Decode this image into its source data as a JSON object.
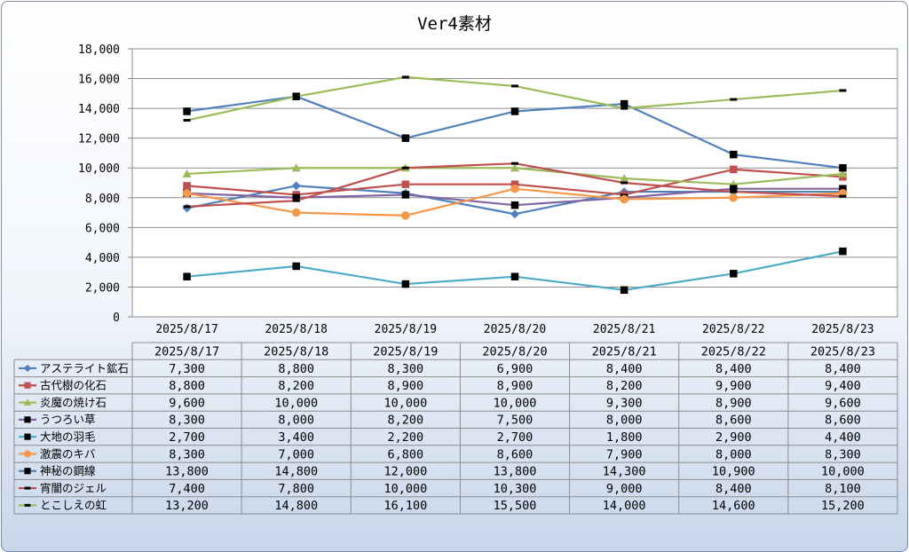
{
  "chart_data": {
    "type": "line",
    "title": "Ver4素材",
    "xlabel": "",
    "ylabel": "",
    "ylim": [
      0,
      18000
    ],
    "ytick_step": 2000,
    "ytick_labels": [
      "0",
      "2,000",
      "4,000",
      "6,000",
      "8,000",
      "10,000",
      "12,000",
      "14,000",
      "16,000",
      "18,000"
    ],
    "grid": true,
    "legend": "data-table-below",
    "categories": [
      "2025/8/17",
      "2025/8/18",
      "2025/8/19",
      "2025/8/20",
      "2025/8/21",
      "2025/8/22",
      "2025/8/23"
    ],
    "series": [
      {
        "name": "アステライト鉱石",
        "color": "#4f81bd",
        "marker": "diamond",
        "values": [
          7300,
          8800,
          8300,
          6900,
          8400,
          8400,
          8400
        ],
        "labels": [
          "7,300",
          "8,800",
          "8,300",
          "6,900",
          "8,400",
          "8,400",
          "8,400"
        ]
      },
      {
        "name": "古代樹の化石",
        "color": "#c0504d",
        "marker": "square",
        "values": [
          8800,
          8200,
          8900,
          8900,
          8200,
          9900,
          9400
        ],
        "labels": [
          "8,800",
          "8,200",
          "8,900",
          "8,900",
          "8,200",
          "9,900",
          "9,400"
        ]
      },
      {
        "name": "炎魔の焼け石",
        "color": "#9bbb59",
        "marker": "triangle",
        "values": [
          9600,
          10000,
          10000,
          10000,
          9300,
          8900,
          9600
        ],
        "labels": [
          "9,600",
          "10,000",
          "10,000",
          "10,000",
          "9,300",
          "8,900",
          "9,600"
        ]
      },
      {
        "name": "うつろい草",
        "color": "#8064a2",
        "marker": "xsquare",
        "values": [
          8300,
          8000,
          8200,
          7500,
          8000,
          8600,
          8600
        ],
        "labels": [
          "8,300",
          "8,000",
          "8,200",
          "7,500",
          "8,000",
          "8,600",
          "8,600"
        ]
      },
      {
        "name": "大地の羽毛",
        "color": "#4bacc6",
        "marker": "blacksquare",
        "values": [
          2700,
          3400,
          2200,
          2700,
          1800,
          2900,
          4400
        ],
        "labels": [
          "2,700",
          "3,400",
          "2,200",
          "2,700",
          "1,800",
          "2,900",
          "4,400"
        ]
      },
      {
        "name": "激震のキバ",
        "color": "#f79646",
        "marker": "circle",
        "values": [
          8300,
          7000,
          6800,
          8600,
          7900,
          8000,
          8300
        ],
        "labels": [
          "8,300",
          "7,000",
          "6,800",
          "8,600",
          "7,900",
          "8,000",
          "8,300"
        ]
      },
      {
        "name": "神秘の鋼線",
        "color": "#4f81bd",
        "marker": "blacksquare",
        "values": [
          13800,
          14800,
          12000,
          13800,
          14300,
          10900,
          10000
        ],
        "labels": [
          "13,800",
          "14,800",
          "12,000",
          "13,800",
          "14,300",
          "10,900",
          "10,000"
        ]
      },
      {
        "name": "宵闇のジェル",
        "color": "#c0504d",
        "marker": "dash",
        "values": [
          7400,
          7800,
          10000,
          10300,
          9000,
          8400,
          8100
        ],
        "labels": [
          "7,400",
          "7,800",
          "10,000",
          "10,300",
          "9,000",
          "8,400",
          "8,100"
        ]
      },
      {
        "name": "とこしえの虹",
        "color": "#9bbb59",
        "marker": "dash",
        "values": [
          13200,
          14800,
          16100,
          15500,
          14000,
          14600,
          15200
        ],
        "labels": [
          "13,200",
          "14,800",
          "16,100",
          "15,500",
          "14,000",
          "14,600",
          "15,200"
        ]
      }
    ]
  }
}
